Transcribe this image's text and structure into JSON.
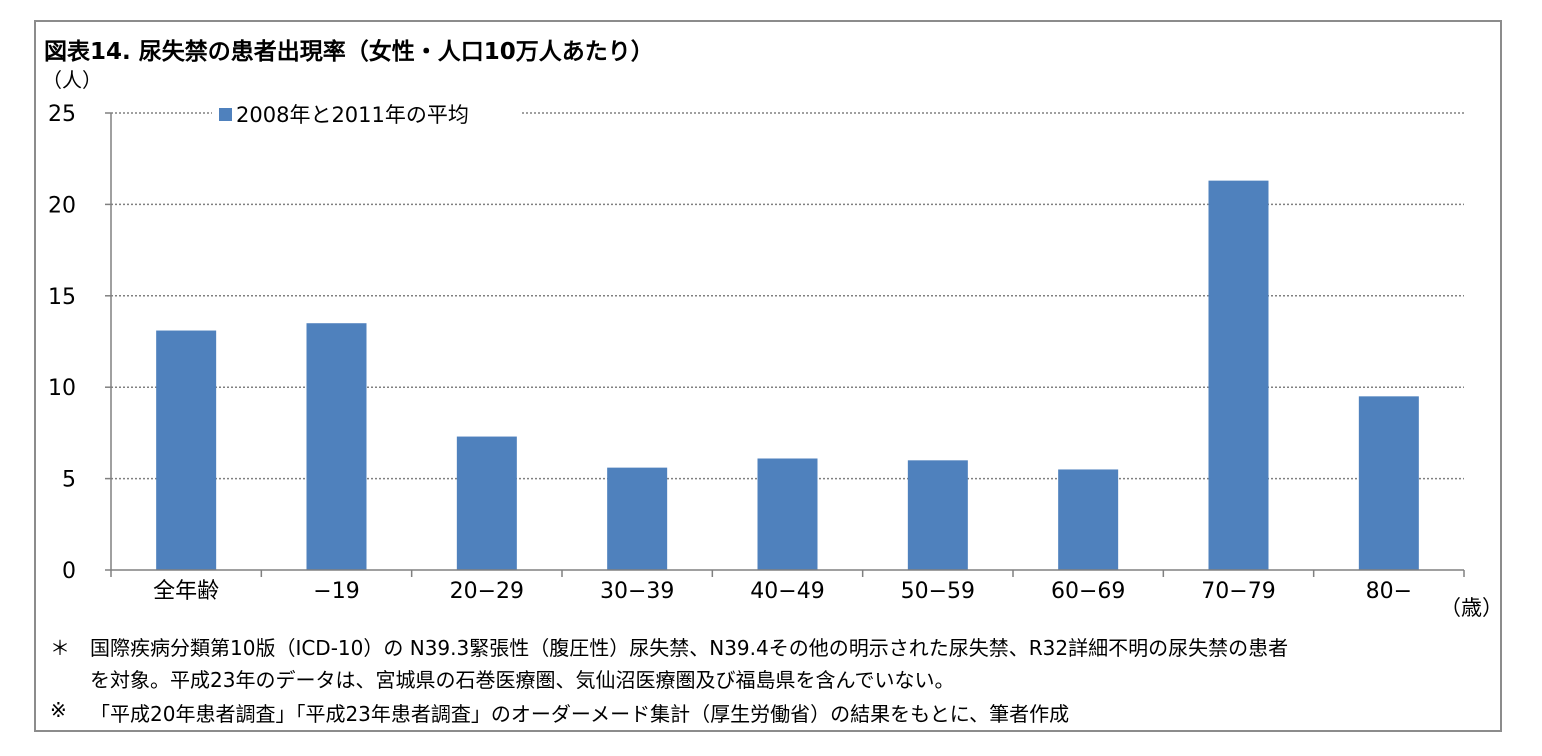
{
  "chart_data": {
    "type": "bar",
    "title": "図表14. 尿失禁の患者出現率（女性・人口10万人あたり）",
    "ylabel": "（人）",
    "xlabel": "（歳）",
    "categories": [
      "全年齢",
      "−19",
      "20−29",
      "30−39",
      "40−49",
      "50−59",
      "60−69",
      "70−79",
      "80−"
    ],
    "series": [
      {
        "name": "2008年と2011年の平均",
        "values": [
          13.1,
          13.5,
          7.3,
          5.6,
          6.1,
          6.0,
          5.5,
          21.3,
          9.5
        ]
      }
    ],
    "ylim": [
      0,
      25
    ],
    "yticks": [
      "0",
      "5",
      "10",
      "15",
      "20",
      "25"
    ],
    "grid": true,
    "legend": "top-left",
    "bar_color": "#4f81bd"
  },
  "notes": [
    {
      "mark": "＊",
      "lines": [
        "国際疾病分類第10版（ICD-10）の N39.3緊張性（腹圧性）尿失禁、N39.4その他の明示された尿失禁、R32詳細不明の尿失禁の患者",
        "を対象。平成23年のデータは、宮城県の石巻医療圏、気仙沼医療圏及び福島県を含んでいない。"
      ]
    },
    {
      "mark": "※",
      "lines": [
        "「平成20年患者調査」「平成23年患者調査」のオーダーメード集計（厚生労働省）の結果をもとに、筆者作成"
      ]
    }
  ]
}
